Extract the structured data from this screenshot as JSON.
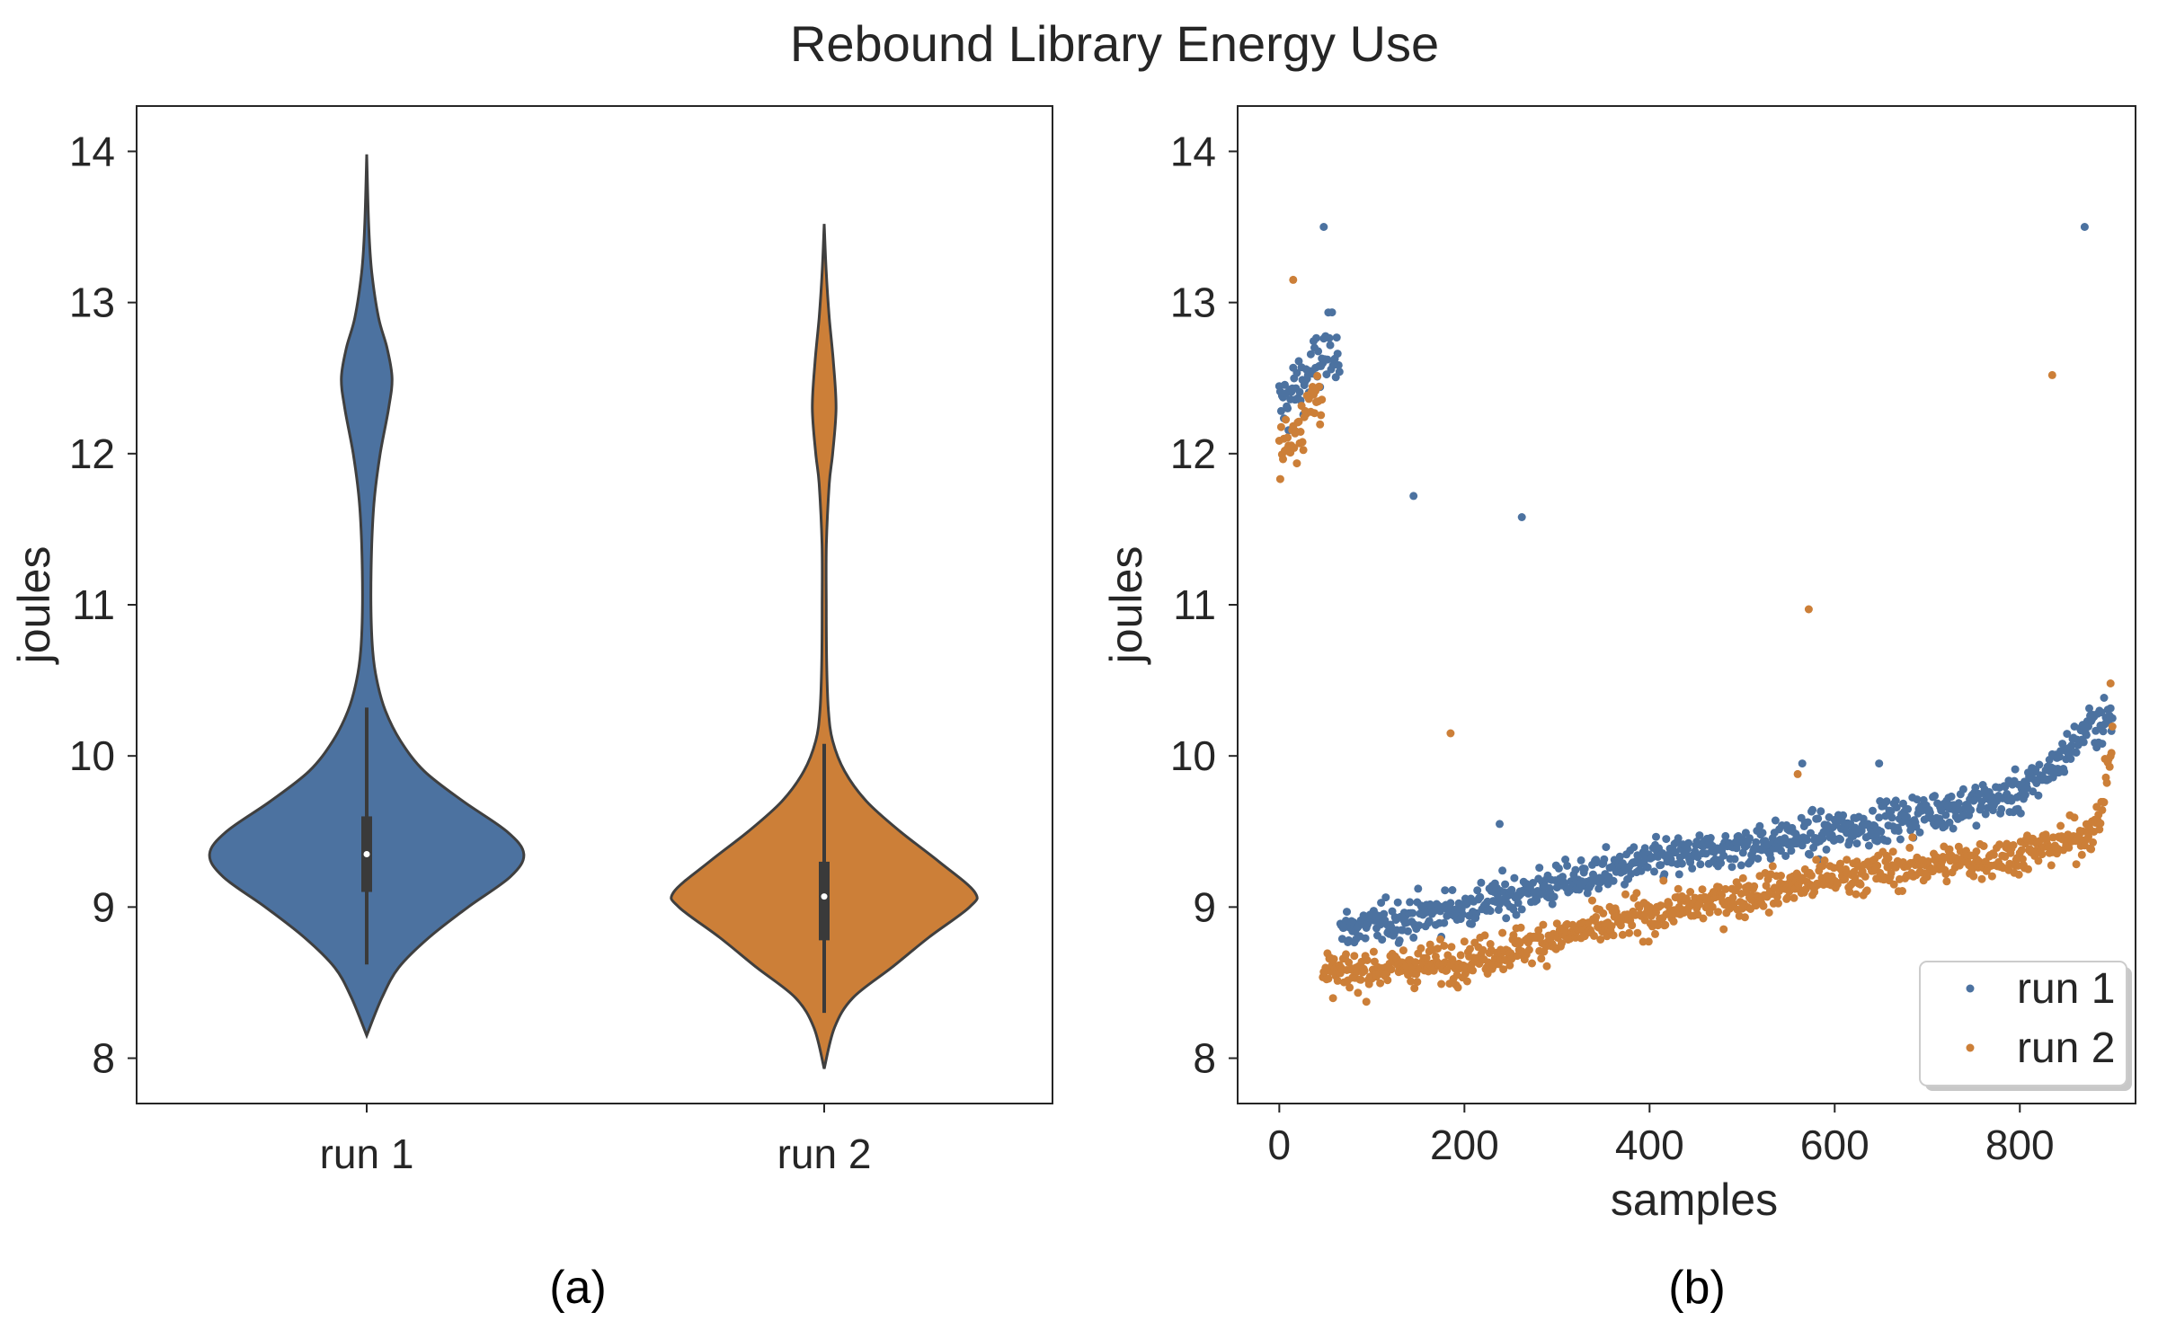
{
  "figure": {
    "title": "Rebound Library Energy Use",
    "captions": [
      "(a)",
      "(b)"
    ]
  },
  "colors": {
    "run1": "#4c72a0",
    "run2": "#cc7f38",
    "outline": "#3f3f3f",
    "axes": "#262626"
  },
  "chart_data": [
    {
      "type": "violin",
      "ylabel": "joules",
      "xlabel": "",
      "ylim": [
        7.7,
        14.3
      ],
      "yticks": [
        8,
        9,
        10,
        11,
        12,
        13,
        14
      ],
      "categories": [
        "run 1",
        "run 2"
      ],
      "series": [
        {
          "name": "run 1",
          "range": [
            8.15,
            13.98
          ],
          "whisker": [
            8.62,
            10.32
          ],
          "quartiles": [
            9.1,
            9.6
          ],
          "median": 9.35,
          "density_y": [
            8.15,
            8.4,
            8.6,
            8.8,
            9.0,
            9.2,
            9.35,
            9.5,
            9.7,
            9.9,
            10.1,
            10.3,
            10.5,
            10.7,
            11.0,
            11.4,
            11.7,
            12.0,
            12.3,
            12.5,
            12.7,
            12.9,
            13.2,
            13.5,
            13.98
          ],
          "density_width": [
            0.0,
            0.09,
            0.19,
            0.37,
            0.6,
            0.85,
            0.93,
            0.83,
            0.57,
            0.34,
            0.2,
            0.11,
            0.06,
            0.035,
            0.025,
            0.03,
            0.045,
            0.08,
            0.13,
            0.15,
            0.12,
            0.07,
            0.03,
            0.012,
            0.0
          ]
        },
        {
          "name": "run 2",
          "range": [
            7.93,
            13.52
          ],
          "whisker": [
            8.3,
            10.08
          ],
          "quartiles": [
            8.78,
            9.3
          ],
          "median": 9.07,
          "density_y": [
            7.93,
            8.2,
            8.4,
            8.6,
            8.8,
            9.0,
            9.1,
            9.3,
            9.5,
            9.7,
            9.9,
            10.1,
            10.3,
            10.6,
            11.0,
            11.4,
            11.8,
            12.0,
            12.3,
            12.6,
            12.9,
            13.2,
            13.52
          ],
          "density_width": [
            0.0,
            0.06,
            0.17,
            0.4,
            0.62,
            0.86,
            0.89,
            0.68,
            0.45,
            0.25,
            0.12,
            0.05,
            0.025,
            0.015,
            0.012,
            0.013,
            0.03,
            0.05,
            0.07,
            0.055,
            0.03,
            0.012,
            0.0
          ]
        }
      ]
    },
    {
      "type": "scatter",
      "xlabel": "samples",
      "ylabel": "joules",
      "xlim": [
        -45,
        925
      ],
      "ylim": [
        7.7,
        14.3
      ],
      "xticks": [
        0,
        200,
        400,
        600,
        800
      ],
      "yticks": [
        8,
        9,
        10,
        11,
        12,
        13,
        14
      ],
      "legend": "lower-right",
      "series": [
        {
          "name": "run 1",
          "color": "#4c72a0",
          "trend": [
            [
              0,
              12.3
            ],
            [
              60,
              12.75
            ],
            [
              72,
              8.85
            ],
            [
              200,
              9.0
            ],
            [
              400,
              9.3
            ],
            [
              600,
              9.5
            ],
            [
              800,
              9.75
            ],
            [
              840,
              9.95
            ],
            [
              875,
              10.2
            ],
            [
              900,
              10.25
            ]
          ],
          "outliers": [
            [
              48,
              13.5
            ],
            [
              145,
              11.72
            ],
            [
              262,
              11.58
            ],
            [
              870,
              13.5
            ],
            [
              238,
              9.55
            ],
            [
              565,
              9.95
            ],
            [
              648,
              9.95
            ]
          ]
        },
        {
          "name": "run 2",
          "color": "#cc7f38",
          "trend": [
            [
              0,
              12.0
            ],
            [
              45,
              12.45
            ],
            [
              48,
              8.55
            ],
            [
              200,
              8.65
            ],
            [
              400,
              8.95
            ],
            [
              600,
              9.2
            ],
            [
              800,
              9.35
            ],
            [
              860,
              9.45
            ],
            [
              885,
              9.55
            ],
            [
              900,
              10.1
            ]
          ],
          "outliers": [
            [
              15,
              13.15
            ],
            [
              185,
              10.15
            ],
            [
              572,
              10.97
            ],
            [
              835,
              12.52
            ],
            [
              898,
              10.48
            ],
            [
              560,
              9.88
            ]
          ]
        }
      ]
    }
  ]
}
